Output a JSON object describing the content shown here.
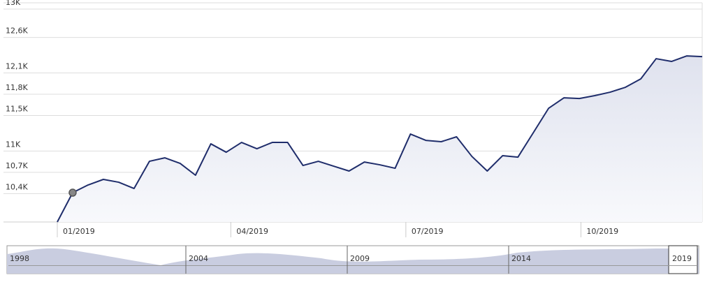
{
  "chart_data": {
    "type": "line",
    "values": [
      10000,
      10413,
      10521,
      10600,
      10560,
      10472,
      10855,
      10904,
      10826,
      10659,
      11101,
      10983,
      11121,
      11032,
      11121,
      11121,
      10796,
      10855,
      10786,
      10718,
      10845,
      10806,
      10757,
      11239,
      11150,
      11131,
      11200,
      10924,
      10718,
      10934,
      10914,
      11258,
      11603,
      11750,
      11740,
      11780,
      11829,
      11898,
      12016,
      12301,
      12262,
      12340,
      12330
    ],
    "color": "#1f2d6b",
    "ylim": [
      10000,
      13000
    ],
    "yticks": [
      {
        "value": 13000,
        "label": "13K"
      },
      {
        "value": 12600,
        "label": "12,6K"
      },
      {
        "value": 12100,
        "label": "12,1K"
      },
      {
        "value": 11800,
        "label": "11,8K"
      },
      {
        "value": 11500,
        "label": "11,5K"
      },
      {
        "value": 11000,
        "label": "11K"
      },
      {
        "value": 10700,
        "label": "10,7K"
      },
      {
        "value": 10400,
        "label": "10,4K"
      }
    ],
    "xlim": [
      0,
      42
    ],
    "xticks": [
      {
        "value": 0,
        "label": "01/2019"
      },
      {
        "value": 11.3,
        "label": "04/2019"
      },
      {
        "value": 22.7,
        "label": "07/2019"
      },
      {
        "value": 34.1,
        "label": "10/2019"
      }
    ],
    "grid": true,
    "highlight": 1,
    "navigator": [
      "1998",
      "2004",
      "2009",
      "2014",
      "2019"
    ]
  }
}
